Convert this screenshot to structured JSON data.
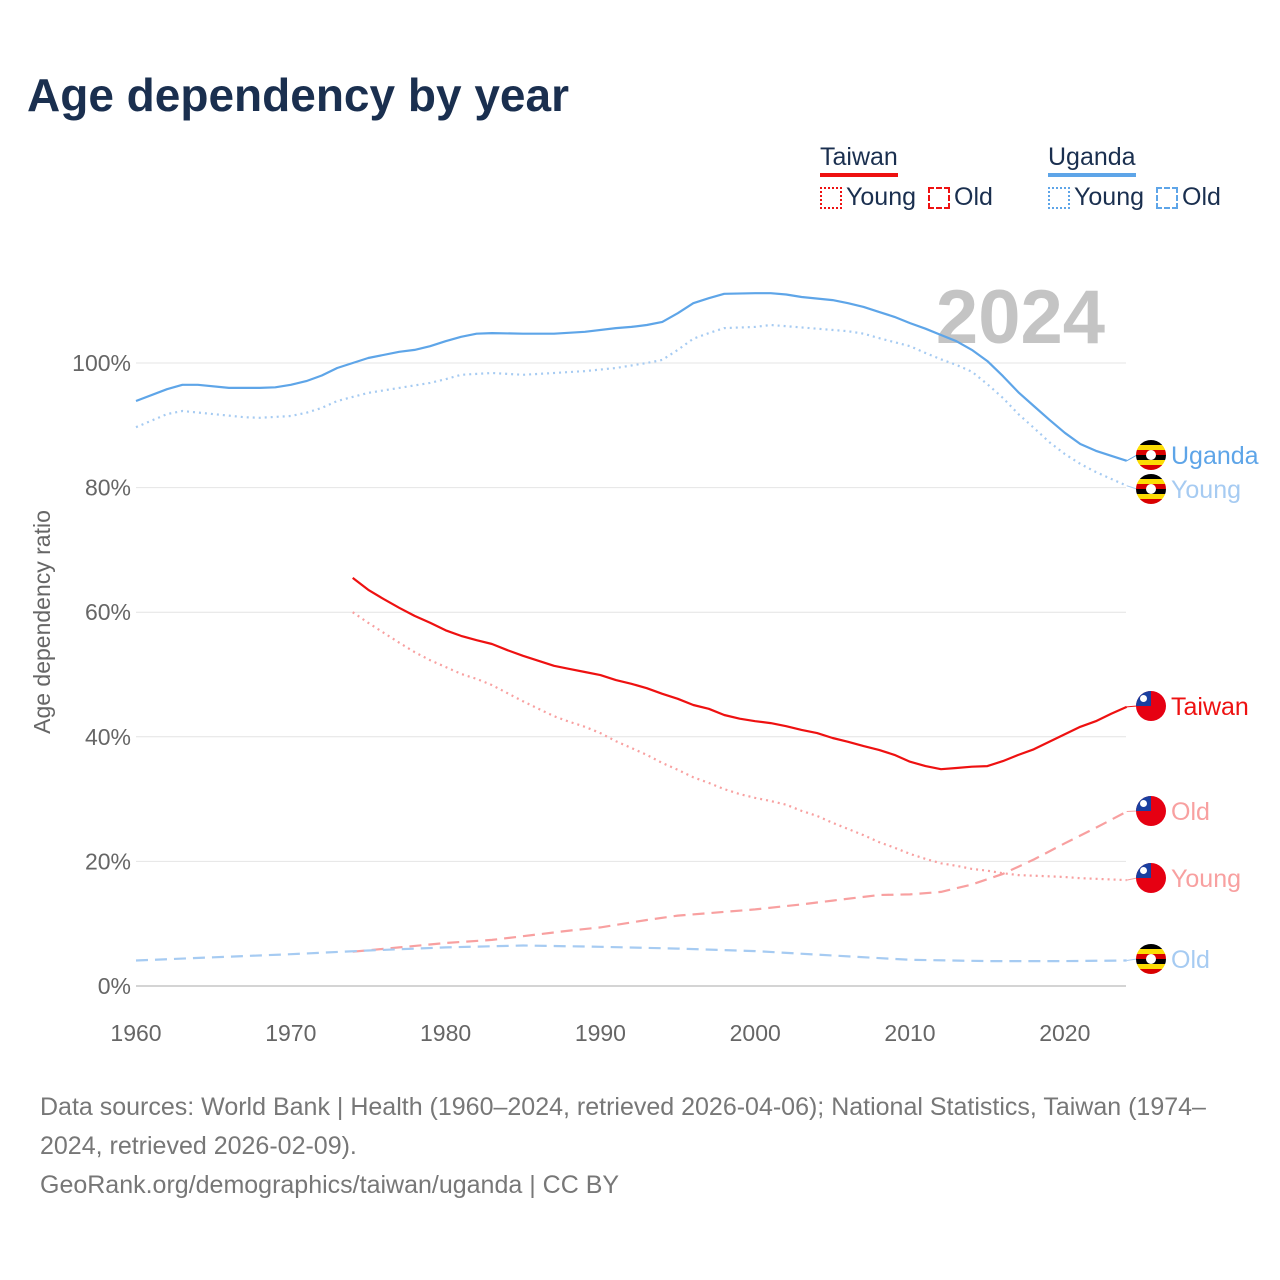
{
  "title": "Age dependency by year",
  "legend": {
    "taiwan": "Taiwan",
    "uganda": "Uganda",
    "young": "Young",
    "old": "Old"
  },
  "colors": {
    "taiwan": "#ee1111",
    "taiwan_light": "#f8a0a0",
    "uganda": "#5ea5e8",
    "uganda_light": "#a6cbf2"
  },
  "footer": {
    "sources": "Data sources: World Bank | Health (1960–2024, retrieved 2026-04-06); National Statistics, Taiwan (1974–2024, retrieved 2026-02-09).",
    "link": "GeoRank.org/demographics/taiwan/uganda | CC BY"
  },
  "chart_data": {
    "type": "line",
    "title": "Age dependency by year",
    "ylabel": "Age dependency ratio",
    "xlabel": "",
    "year_watermark": "2024",
    "xlim": [
      1960,
      2024
    ],
    "ylim": [
      0,
      115
    ],
    "x_ticks": [
      "1960",
      "1970",
      "1980",
      "1990",
      "2000",
      "2010",
      "2020"
    ],
    "y_ticks": [
      "0%",
      "20%",
      "40%",
      "60%",
      "80%",
      "100%"
    ],
    "grid": true,
    "series": [
      {
        "name": "Uganda",
        "label": "Uganda",
        "country": "uganda",
        "style": "solid",
        "points": [
          [
            1960,
            93.9
          ],
          [
            1962,
            95.8
          ],
          [
            1963,
            96.5
          ],
          [
            1964,
            96.5
          ],
          [
            1966,
            96
          ],
          [
            1968,
            96
          ],
          [
            1969,
            96.1
          ],
          [
            1970,
            96.5
          ],
          [
            1971,
            97.1
          ],
          [
            1972,
            98
          ],
          [
            1973,
            99.2
          ],
          [
            1975,
            100.8
          ],
          [
            1977,
            101.8
          ],
          [
            1978,
            102.1
          ],
          [
            1979,
            102.7
          ],
          [
            1980,
            103.5
          ],
          [
            1981,
            104.2
          ],
          [
            1982,
            104.7
          ],
          [
            1983,
            104.8
          ],
          [
            1985,
            104.7
          ],
          [
            1987,
            104.7
          ],
          [
            1989,
            105
          ],
          [
            1991,
            105.6
          ],
          [
            1992,
            105.8
          ],
          [
            1993,
            106.1
          ],
          [
            1994,
            106.6
          ],
          [
            1995,
            108
          ],
          [
            1996,
            109.6
          ],
          [
            1997,
            110.4
          ],
          [
            1998,
            111.1
          ],
          [
            2000,
            111.2
          ],
          [
            2001,
            111.2
          ],
          [
            2002,
            111
          ],
          [
            2003,
            110.6
          ],
          [
            2005,
            110.1
          ],
          [
            2006,
            109.6
          ],
          [
            2007,
            109
          ],
          [
            2008,
            108.2
          ],
          [
            2009,
            107.4
          ],
          [
            2010,
            106.4
          ],
          [
            2011,
            105.5
          ],
          [
            2012,
            104.5
          ],
          [
            2013,
            103.5
          ],
          [
            2014,
            102.1
          ],
          [
            2015,
            100.3
          ],
          [
            2016,
            97.9
          ],
          [
            2017,
            95.3
          ],
          [
            2018,
            93.1
          ],
          [
            2019,
            90.9
          ],
          [
            2020,
            88.8
          ],
          [
            2021,
            87
          ],
          [
            2022,
            85.9
          ],
          [
            2023,
            85.1
          ],
          [
            2024,
            84.3
          ]
        ]
      },
      {
        "name": "Uganda Young",
        "label": "Young",
        "country": "uganda",
        "style": "dotted",
        "points": [
          [
            1960,
            89.7
          ],
          [
            1962,
            91.8
          ],
          [
            1963,
            92.3
          ],
          [
            1965,
            91.8
          ],
          [
            1967,
            91.3
          ],
          [
            1968,
            91.2
          ],
          [
            1970,
            91.5
          ],
          [
            1971,
            92
          ],
          [
            1972,
            92.8
          ],
          [
            1973,
            93.9
          ],
          [
            1975,
            95.2
          ],
          [
            1977,
            96
          ],
          [
            1979,
            96.8
          ],
          [
            1980,
            97.4
          ],
          [
            1981,
            98.1
          ],
          [
            1983,
            98.4
          ],
          [
            1985,
            98.1
          ],
          [
            1987,
            98.4
          ],
          [
            1989,
            98.7
          ],
          [
            1991,
            99.2
          ],
          [
            1993,
            100
          ],
          [
            1994,
            100.5
          ],
          [
            1995,
            102.1
          ],
          [
            1996,
            103.9
          ],
          [
            1997,
            104.8
          ],
          [
            1998,
            105.6
          ],
          [
            2000,
            105.8
          ],
          [
            2001,
            106.1
          ],
          [
            2002,
            105.9
          ],
          [
            2004,
            105.5
          ],
          [
            2006,
            105.1
          ],
          [
            2007,
            104.7
          ],
          [
            2008,
            104
          ],
          [
            2010,
            102.7
          ],
          [
            2011,
            101.6
          ],
          [
            2012,
            100.6
          ],
          [
            2013,
            99.7
          ],
          [
            2014,
            98.6
          ],
          [
            2015,
            96.6
          ],
          [
            2016,
            94.4
          ],
          [
            2017,
            91.8
          ],
          [
            2018,
            89.6
          ],
          [
            2019,
            87.3
          ],
          [
            2020,
            85.4
          ],
          [
            2021,
            83.8
          ],
          [
            2022,
            82.5
          ],
          [
            2023,
            81.4
          ],
          [
            2024,
            80.3
          ]
        ]
      },
      {
        "name": "Taiwan",
        "label": "Taiwan",
        "country": "taiwan",
        "style": "solid",
        "points": [
          [
            1974,
            65.5
          ],
          [
            1975,
            63.6
          ],
          [
            1976,
            62.1
          ],
          [
            1977,
            60.7
          ],
          [
            1978,
            59.4
          ],
          [
            1979,
            58.3
          ],
          [
            1980,
            57.1
          ],
          [
            1981,
            56.2
          ],
          [
            1982,
            55.5
          ],
          [
            1983,
            54.9
          ],
          [
            1984,
            53.9
          ],
          [
            1985,
            53
          ],
          [
            1986,
            52.2
          ],
          [
            1987,
            51.4
          ],
          [
            1988,
            50.9
          ],
          [
            1989,
            50.4
          ],
          [
            1990,
            49.9
          ],
          [
            1991,
            49.1
          ],
          [
            1992,
            48.5
          ],
          [
            1993,
            47.8
          ],
          [
            1994,
            46.9
          ],
          [
            1995,
            46.1
          ],
          [
            1996,
            45.1
          ],
          [
            1997,
            44.5
          ],
          [
            1998,
            43.5
          ],
          [
            1999,
            42.9
          ],
          [
            2000,
            42.5
          ],
          [
            2001,
            42.2
          ],
          [
            2002,
            41.7
          ],
          [
            2003,
            41.1
          ],
          [
            2004,
            40.6
          ],
          [
            2005,
            39.8
          ],
          [
            2006,
            39.2
          ],
          [
            2007,
            38.5
          ],
          [
            2008,
            37.9
          ],
          [
            2009,
            37.1
          ],
          [
            2010,
            36
          ],
          [
            2011,
            35.3
          ],
          [
            2012,
            34.8
          ],
          [
            2013,
            35
          ],
          [
            2014,
            35.2
          ],
          [
            2015,
            35.3
          ],
          [
            2016,
            36.1
          ],
          [
            2017,
            37.1
          ],
          [
            2018,
            38
          ],
          [
            2019,
            39.2
          ],
          [
            2020,
            40.4
          ],
          [
            2021,
            41.6
          ],
          [
            2022,
            42.5
          ],
          [
            2023,
            43.7
          ],
          [
            2024,
            44.8
          ]
        ]
      },
      {
        "name": "Taiwan Old",
        "label": "Old",
        "country": "taiwan",
        "style": "dashed",
        "points": [
          [
            1974,
            5.5
          ],
          [
            1977,
            6.2
          ],
          [
            1980,
            6.9
          ],
          [
            1983,
            7.4
          ],
          [
            1985,
            8
          ],
          [
            1988,
            8.9
          ],
          [
            1990,
            9.4
          ],
          [
            1993,
            10.6
          ],
          [
            1995,
            11.3
          ],
          [
            1998,
            11.9
          ],
          [
            2000,
            12.3
          ],
          [
            2003,
            13.1
          ],
          [
            2005,
            13.7
          ],
          [
            2008,
            14.6
          ],
          [
            2010,
            14.7
          ],
          [
            2012,
            15.1
          ],
          [
            2014,
            16.3
          ],
          [
            2016,
            18
          ],
          [
            2018,
            20.3
          ],
          [
            2020,
            22.9
          ],
          [
            2022,
            25.4
          ],
          [
            2024,
            28
          ]
        ]
      },
      {
        "name": "Taiwan Young",
        "label": "Young",
        "country": "taiwan",
        "style": "dotted",
        "points": [
          [
            1974,
            60
          ],
          [
            1975,
            58.3
          ],
          [
            1976,
            56.7
          ],
          [
            1977,
            55.1
          ],
          [
            1978,
            53.6
          ],
          [
            1979,
            52.3
          ],
          [
            1980,
            51.2
          ],
          [
            1981,
            50.1
          ],
          [
            1982,
            49.3
          ],
          [
            1983,
            48.3
          ],
          [
            1984,
            47
          ],
          [
            1985,
            45.7
          ],
          [
            1986,
            44.5
          ],
          [
            1987,
            43.3
          ],
          [
            1988,
            42.4
          ],
          [
            1989,
            41.6
          ],
          [
            1990,
            40.6
          ],
          [
            1991,
            39.3
          ],
          [
            1992,
            38.2
          ],
          [
            1993,
            37.1
          ],
          [
            1994,
            35.8
          ],
          [
            1995,
            34.7
          ],
          [
            1996,
            33.5
          ],
          [
            1997,
            32.6
          ],
          [
            1998,
            31.6
          ],
          [
            1999,
            30.8
          ],
          [
            2000,
            30.2
          ],
          [
            2001,
            29.7
          ],
          [
            2002,
            29.1
          ],
          [
            2003,
            28.1
          ],
          [
            2004,
            27.3
          ],
          [
            2005,
            26.2
          ],
          [
            2006,
            25.2
          ],
          [
            2007,
            24.2
          ],
          [
            2008,
            23.1
          ],
          [
            2009,
            22.2
          ],
          [
            2010,
            21.2
          ],
          [
            2011,
            20.4
          ],
          [
            2012,
            19.7
          ],
          [
            2013,
            19.3
          ],
          [
            2014,
            18.8
          ],
          [
            2015,
            18.5
          ],
          [
            2016,
            18.1
          ],
          [
            2017,
            17.8
          ],
          [
            2018,
            17.7
          ],
          [
            2020,
            17.5
          ],
          [
            2021,
            17.3
          ],
          [
            2022,
            17.2
          ],
          [
            2024,
            17
          ]
        ]
      },
      {
        "name": "Uganda Old",
        "label": "Old",
        "country": "uganda",
        "style": "dashed",
        "points": [
          [
            1960,
            4.1
          ],
          [
            1965,
            4.6
          ],
          [
            1970,
            5.1
          ],
          [
            1975,
            5.7
          ],
          [
            1980,
            6.2
          ],
          [
            1985,
            6.5
          ],
          [
            1990,
            6.3
          ],
          [
            1995,
            6
          ],
          [
            2000,
            5.6
          ],
          [
            2005,
            4.9
          ],
          [
            2010,
            4.2
          ],
          [
            2015,
            4
          ],
          [
            2020,
            4
          ],
          [
            2024,
            4.1
          ]
        ]
      }
    ]
  }
}
